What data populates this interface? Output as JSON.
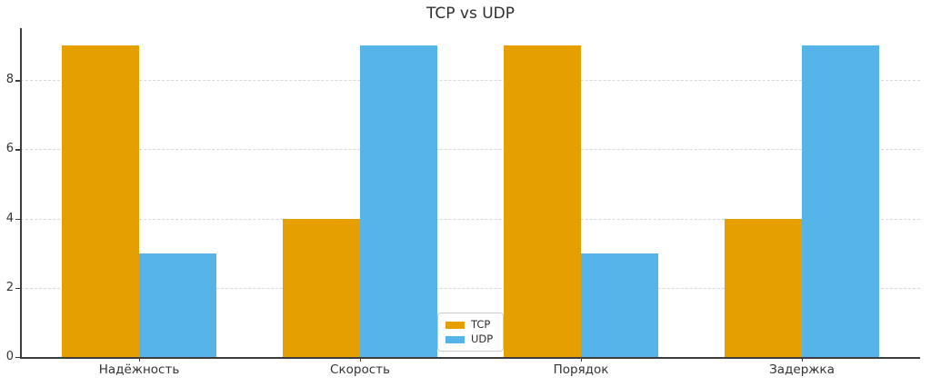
{
  "chart_data": {
    "type": "bar",
    "title": "TCP vs UDP",
    "categories": [
      "Надёжность",
      "Скорость",
      "Порядок",
      "Задержка"
    ],
    "series": [
      {
        "name": "TCP",
        "color": "#E69F00",
        "values": [
          9,
          4,
          9,
          4
        ]
      },
      {
        "name": "UDP",
        "color": "#56B4E9",
        "values": [
          3,
          9,
          3,
          9
        ]
      }
    ],
    "xlabel": "",
    "ylabel": "",
    "ylim": [
      0,
      9.5
    ],
    "yticks": [
      0,
      2,
      4,
      6,
      8
    ],
    "grid": "horizontal dashed, light gray",
    "legend_position": "lower center",
    "bar_width_fraction": 0.35,
    "spines": [
      "left",
      "bottom"
    ],
    "colors": {
      "background": "#ffffff",
      "spine": "#3d3d3d",
      "gridline": "#d8d8d8",
      "text": "#333333"
    }
  }
}
